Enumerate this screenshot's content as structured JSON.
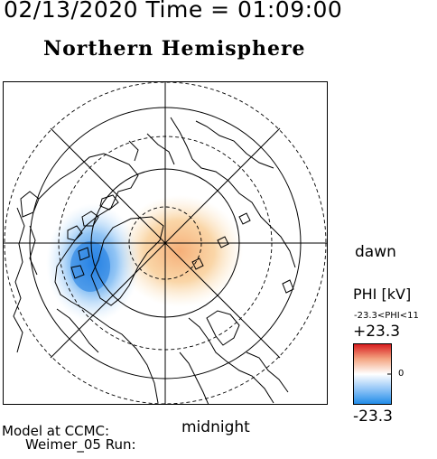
{
  "header": {
    "datetime": "02/13/2020 Time = 01:09:00",
    "title": "Northern Hemisphere"
  },
  "map": {
    "projection": "polar-stereographic-north",
    "direction_labels": {
      "right": "dawn",
      "bottom": "midnight"
    },
    "features": [
      "coastlines",
      "latitude-circles",
      "longitude-lines",
      "electric-potential-contours"
    ]
  },
  "colorbar": {
    "title": "PHI [kV]",
    "range_note": "-23.3<PHI<11",
    "max_label": "+23.3",
    "zero_label": "0",
    "min_label": "-23.3",
    "colors": {
      "positive": "#e8201a",
      "mid": "#ffffff",
      "negative": "#1565d8"
    }
  },
  "footer": {
    "model_at": "Model at CCMC:",
    "model_run": "Weimer_05 Run:"
  }
}
